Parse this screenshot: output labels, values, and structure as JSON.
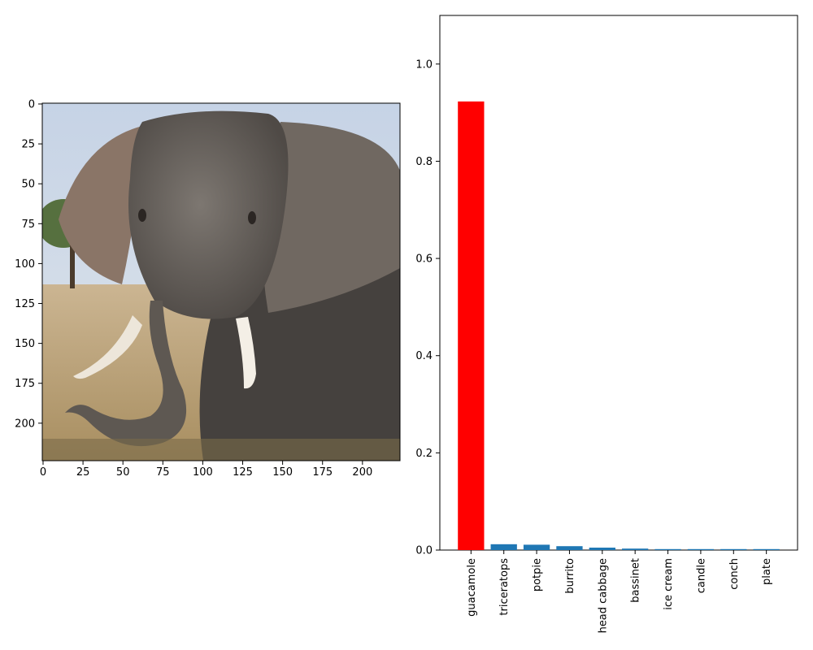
{
  "image_panel": {
    "picture": "elephant-photo",
    "x_ticks": [
      "0",
      "25",
      "50",
      "75",
      "100",
      "125",
      "150",
      "175",
      "200"
    ],
    "y_ticks": [
      "0",
      "25",
      "50",
      "75",
      "100",
      "125",
      "150",
      "175",
      "200"
    ],
    "x_range": [
      -0.5,
      223.5
    ],
    "y_range": [
      -0.5,
      223.5
    ]
  },
  "chart_data": {
    "type": "bar",
    "categories": [
      "guacamole",
      "triceratops",
      "potpie",
      "burrito",
      "head cabbage",
      "bassinet",
      "ice cream",
      "candle",
      "conch",
      "plate"
    ],
    "values": [
      0.923,
      0.012,
      0.011,
      0.008,
      0.005,
      0.003,
      0.002,
      0.002,
      0.002,
      0.002
    ],
    "highlight_index": 0,
    "highlight_color": "#ff0000",
    "bar_color": "#1f77b4",
    "y_ticks": [
      "0.0",
      "0.2",
      "0.4",
      "0.6",
      "0.8",
      "1.0"
    ],
    "ylim": [
      0,
      1.1
    ],
    "title": "",
    "xlabel": "",
    "ylabel": "",
    "grid": false
  }
}
